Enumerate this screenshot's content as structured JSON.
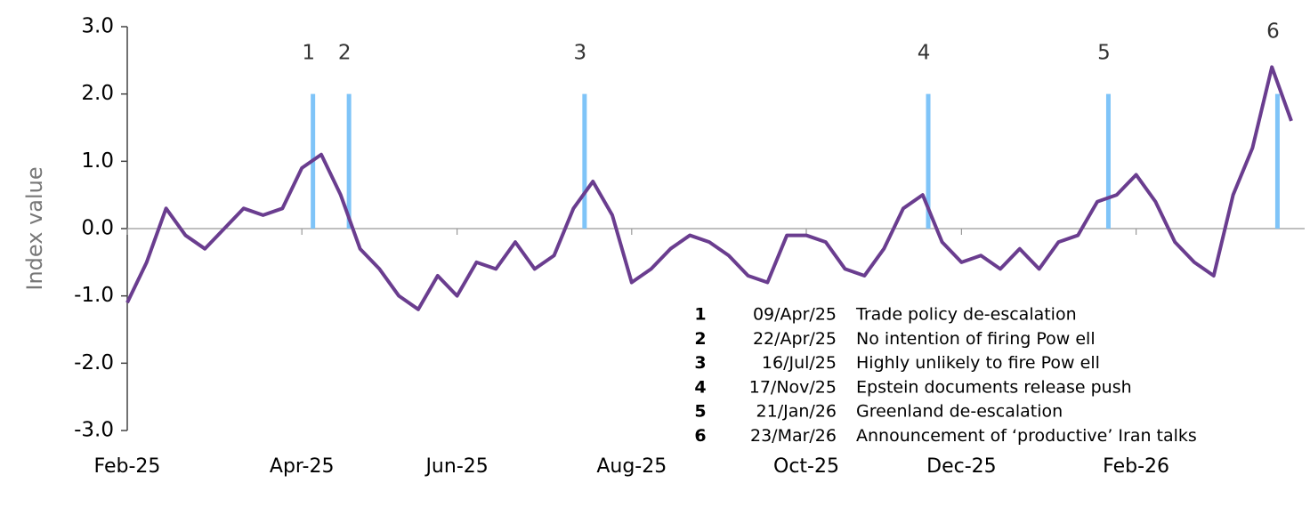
{
  "chart_data": {
    "type": "line",
    "y_label": "Index value",
    "categories": [
      "Feb-25",
      null,
      null,
      null,
      null,
      null,
      null,
      null,
      null,
      "Apr-25",
      null,
      null,
      null,
      null,
      null,
      null,
      null,
      "Jun-25",
      null,
      null,
      null,
      null,
      null,
      null,
      null,
      null,
      "Aug-25",
      null,
      null,
      null,
      null,
      null,
      null,
      null,
      null,
      "Oct-25",
      null,
      null,
      null,
      null,
      null,
      null,
      null,
      "Dec-25",
      null,
      null,
      null,
      null,
      null,
      null,
      null,
      null,
      "Feb-26",
      null,
      null,
      null,
      null,
      null,
      null,
      null,
      null
    ],
    "series": [
      {
        "name": "Index",
        "color": "#6a3d8f",
        "values": [
          -1.1,
          -0.5,
          0.3,
          -0.1,
          -0.3,
          0.0,
          0.3,
          0.2,
          0.3,
          0.9,
          1.1,
          0.5,
          -0.3,
          -0.6,
          -1.0,
          -1.2,
          -0.7,
          -1.0,
          -0.5,
          -0.6,
          -0.2,
          -0.6,
          -0.4,
          0.3,
          0.7,
          0.2,
          -0.8,
          -0.6,
          -0.3,
          -0.1,
          -0.2,
          -0.4,
          -0.7,
          -0.8,
          -0.1,
          -0.1,
          -0.2,
          -0.6,
          -0.7,
          -0.3,
          0.3,
          0.5,
          -0.2,
          -0.5,
          -0.4,
          -0.6,
          -0.3,
          -0.6,
          -0.2,
          -0.1,
          0.4,
          0.5,
          0.8,
          0.4,
          -0.2,
          -0.5,
          -0.7,
          0.5,
          1.2,
          2.4,
          1.6
        ]
      }
    ],
    "ylim": [
      -3,
      3
    ],
    "yticks": [
      {
        "value": -3,
        "label": "-3.0"
      },
      {
        "value": -2,
        "label": "-2.0"
      },
      {
        "value": -1,
        "label": "-1.0"
      },
      {
        "value": 0,
        "label": "0.0"
      },
      {
        "value": 1,
        "label": "1.0"
      },
      {
        "value": 2,
        "label": "2.0"
      },
      {
        "value": 3,
        "label": "3.0"
      }
    ],
    "event_color": "#7fc4f8",
    "event_marker_height": 2.0,
    "events": [
      {
        "number": "1",
        "date": "09/Apr/25",
        "label": "Trade policy de-escalation"
      },
      {
        "number": "2",
        "date": "22/Apr/25",
        "label": "No intention of firing Pow ell"
      },
      {
        "number": "3",
        "date": "16/Jul/25",
        "label": "Highly unlikely to fire Pow ell"
      },
      {
        "number": "4",
        "date": "17/Nov/25",
        "label": "Epstein documents release push"
      },
      {
        "number": "5",
        "date": "21/Jan/26",
        "label": "Greenland de-escalation"
      },
      {
        "number": "6",
        "date": "23/Mar/26",
        "label": "Announcement of ‘productive’ Iran talks"
      }
    ]
  }
}
